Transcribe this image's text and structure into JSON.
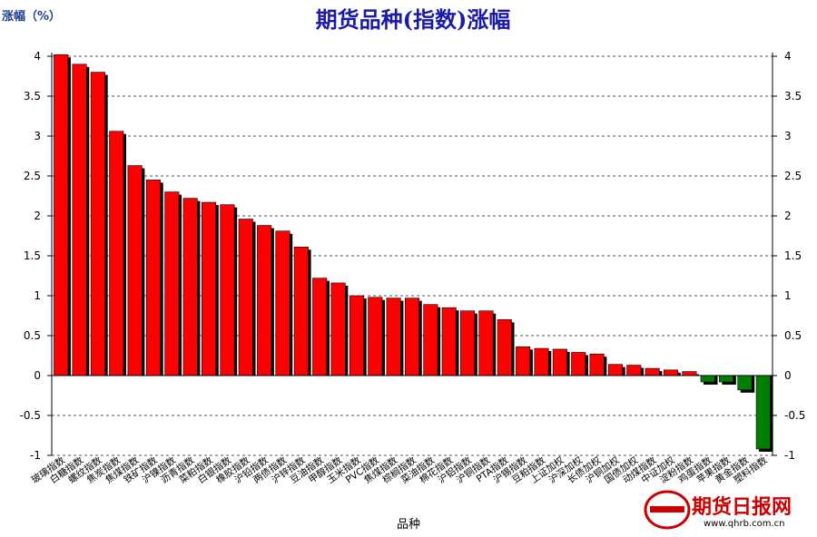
{
  "chart_data": {
    "type": "bar",
    "title": "期货品种(指数)涨幅",
    "ylabel": "涨幅（%）",
    "xlabel": "品种",
    "ylim": [
      -1,
      4
    ],
    "yticks": [
      "4",
      "3.5",
      "3",
      "2.5",
      "2",
      "1.5",
      "1",
      "0.5",
      "0",
      "-0.5",
      "-1"
    ],
    "right_axis": true,
    "grid": "horizontal-dashed",
    "colors": {
      "positive": "#ff0000",
      "negative": "#008000",
      "title": "#1a1aa8"
    },
    "categories": [
      "玻璃指数",
      "白糖指数",
      "螺纹指数",
      "焦炭指数",
      "焦煤指数",
      "铁矿指数",
      "沪镍指数",
      "沥青指数",
      "菜粕指数",
      "白银指数",
      "橡胶指数",
      "沪铅指数",
      "两债指数",
      "沪锌指数",
      "豆油指数",
      "甲醇指数",
      "玉米指数",
      "PVC指数",
      "焦煤指数",
      "棕榈指数",
      "菜油指数",
      "棉花指数",
      "沪铝指数",
      "沪铜指数",
      "PTA指数",
      "沪锡指数",
      "豆粕指数",
      "上证加权",
      "沪深加权",
      "长债加权",
      "沪铜加权",
      "国债加权",
      "动煤指数",
      "中证加权",
      "淀粉指数",
      "鸡蛋指数",
      "苹果指数",
      "黄金指数",
      "塑料指数"
    ],
    "values": [
      4.02,
      3.9,
      3.8,
      3.06,
      2.63,
      2.45,
      2.3,
      2.22,
      2.17,
      2.14,
      1.96,
      1.88,
      1.81,
      1.61,
      1.22,
      1.16,
      1.0,
      0.98,
      0.97,
      0.97,
      0.89,
      0.85,
      0.81,
      0.81,
      0.7,
      0.36,
      0.34,
      0.33,
      0.29,
      0.27,
      0.14,
      0.13,
      0.09,
      0.07,
      0.05,
      -0.08,
      -0.08,
      -0.18,
      -0.92
    ]
  },
  "watermark": {
    "brand": "期货日报网",
    "url": "www.qhrb.com.cn"
  }
}
